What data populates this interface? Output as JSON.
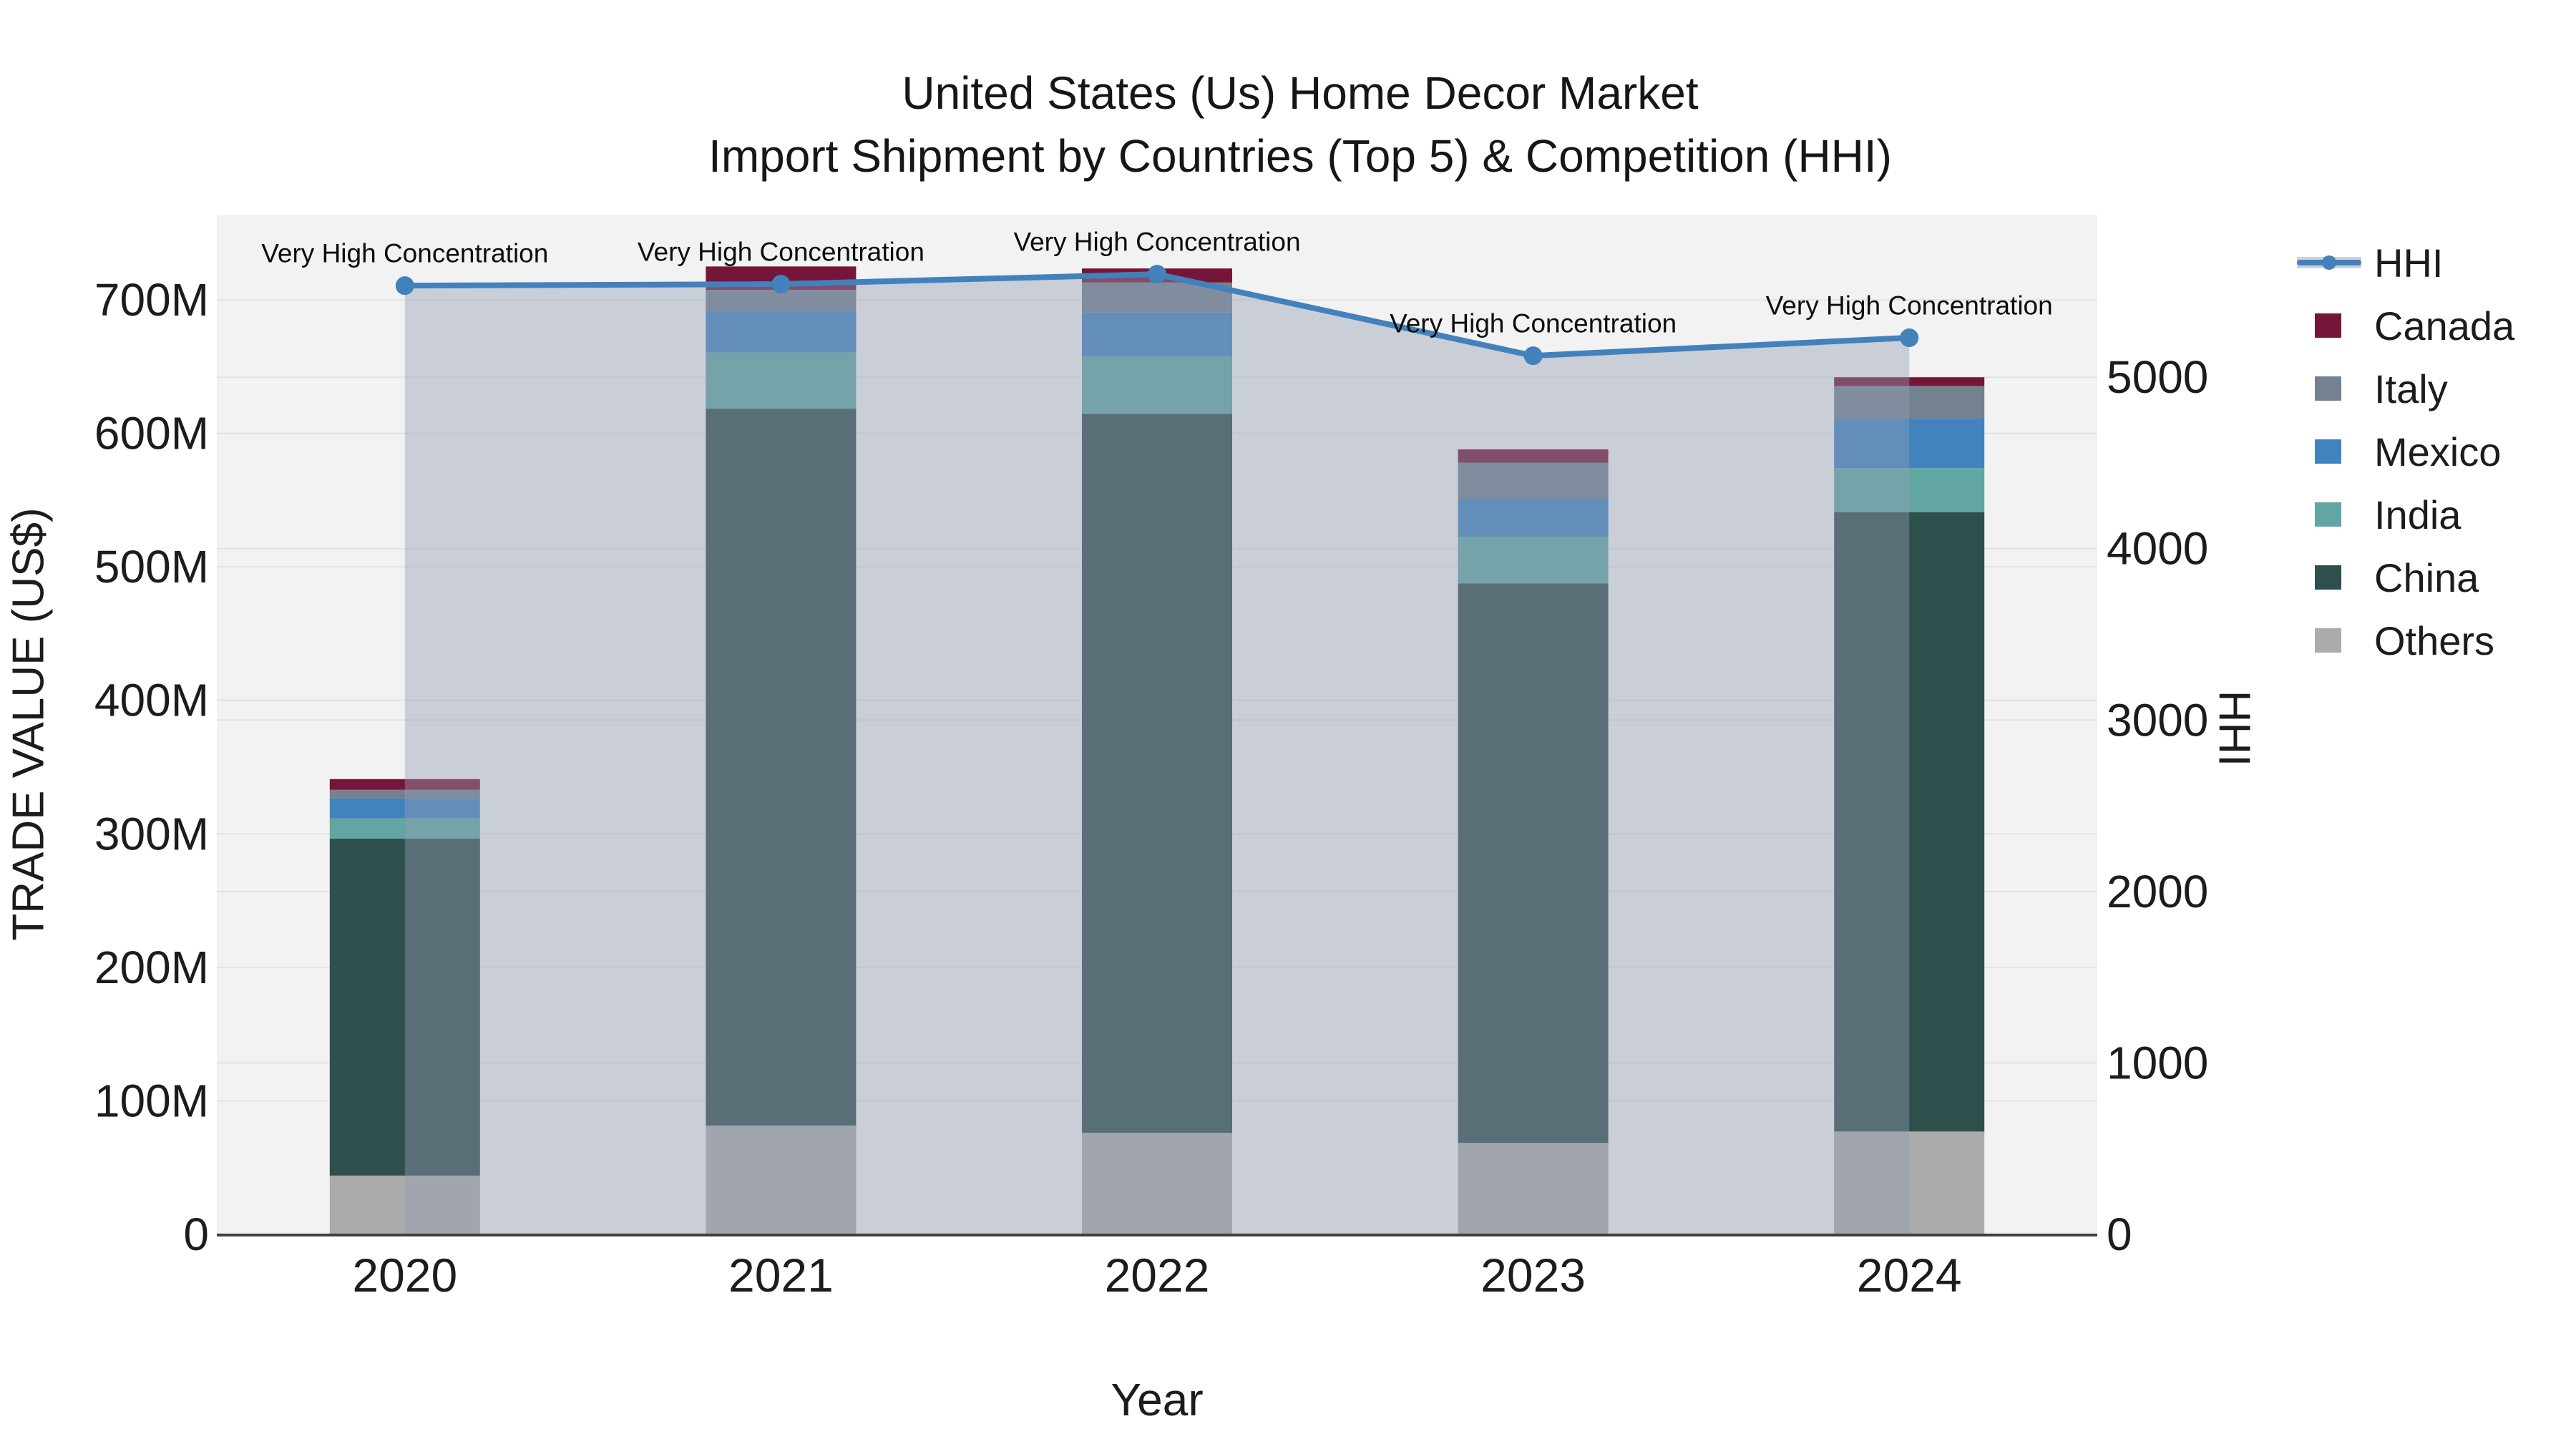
{
  "title": {
    "line1": "United States (Us) Home Decor Market",
    "line2": "Import Shipment by Countries (Top 5) & Competition (HHI)"
  },
  "axes": {
    "x_title": "Year",
    "y_left_title": "TRADE VALUE (US$)",
    "y_right_title": "HHI",
    "y_left_tick_labels": [
      "0",
      "100M",
      "200M",
      "300M",
      "400M",
      "500M",
      "600M",
      "700M"
    ],
    "y_right_tick_labels": [
      "0",
      "1000",
      "2000",
      "3000",
      "4000",
      "5000"
    ]
  },
  "legend": {
    "items": [
      {
        "label": "HHI",
        "type": "line",
        "color": "#4381bd"
      },
      {
        "label": "Canada",
        "type": "swatch",
        "color": "#76153a"
      },
      {
        "label": "Italy",
        "type": "swatch",
        "color": "#74818f"
      },
      {
        "label": "Mexico",
        "type": "swatch",
        "color": "#4283bf"
      },
      {
        "label": "India",
        "type": "swatch",
        "color": "#62a6a3"
      },
      {
        "label": "China",
        "type": "swatch",
        "color": "#2f4f4d"
      },
      {
        "label": "Others",
        "type": "swatch",
        "color": "#ababab"
      }
    ]
  },
  "chart_data": {
    "type": "combo: stacked bar (left axis) + line with markers (right axis)",
    "title": "United States (Us) Home Decor Market — Import Shipment by Countries (Top 5) & Competition (HHI)",
    "categories": [
      "2020",
      "2021",
      "2022",
      "2023",
      "2024"
    ],
    "bar_value_unit": "US$ millions",
    "series": [
      {
        "name": "Others",
        "color": "#ababab",
        "values": [
          44,
          81.5,
          76,
          68.5,
          77
        ]
      },
      {
        "name": "China",
        "color": "#2f4f4d",
        "values": [
          252.5,
          537,
          538.5,
          419,
          464
        ]
      },
      {
        "name": "India",
        "color": "#62a6a3",
        "values": [
          15,
          42,
          43.5,
          35,
          33
        ]
      },
      {
        "name": "Mexico",
        "color": "#4283bf",
        "values": [
          15,
          31,
          32.5,
          28.5,
          37
        ]
      },
      {
        "name": "Italy",
        "color": "#74818f",
        "values": [
          6.5,
          16,
          22.5,
          27,
          24.5
        ]
      },
      {
        "name": "Canada",
        "color": "#76153a",
        "values": [
          8,
          17.5,
          10.5,
          10,
          6.5
        ]
      }
    ],
    "bar_totals": [
      341,
      725,
      723.5,
      588,
      642
    ],
    "line_series": {
      "name": "HHI",
      "color": "#4381bd",
      "values": [
        5534,
        5543,
        5601,
        5125,
        5230
      ],
      "fill_under_color": "rgba(145,158,178,0.42)"
    },
    "annotations": [
      {
        "text": "Very High Concentration",
        "category": "2020"
      },
      {
        "text": "Very High Concentration",
        "category": "2021"
      },
      {
        "text": "Very High Concentration",
        "category": "2022"
      },
      {
        "text": "Very High Concentration",
        "category": "2023"
      },
      {
        "text": "Very High Concentration",
        "category": "2024"
      }
    ],
    "y_left": {
      "label": "TRADE VALUE (US$)",
      "range": [
        0,
        763.8
      ]
    },
    "y_right": {
      "label": "HHI",
      "range": [
        0,
        5948
      ]
    },
    "xlabel": "Year",
    "grid": true,
    "legend_position": "right",
    "plot_bg": "#f2f2f2",
    "gridline_color": "#e3e3e3",
    "axisline_color": "#3f3f3f"
  }
}
